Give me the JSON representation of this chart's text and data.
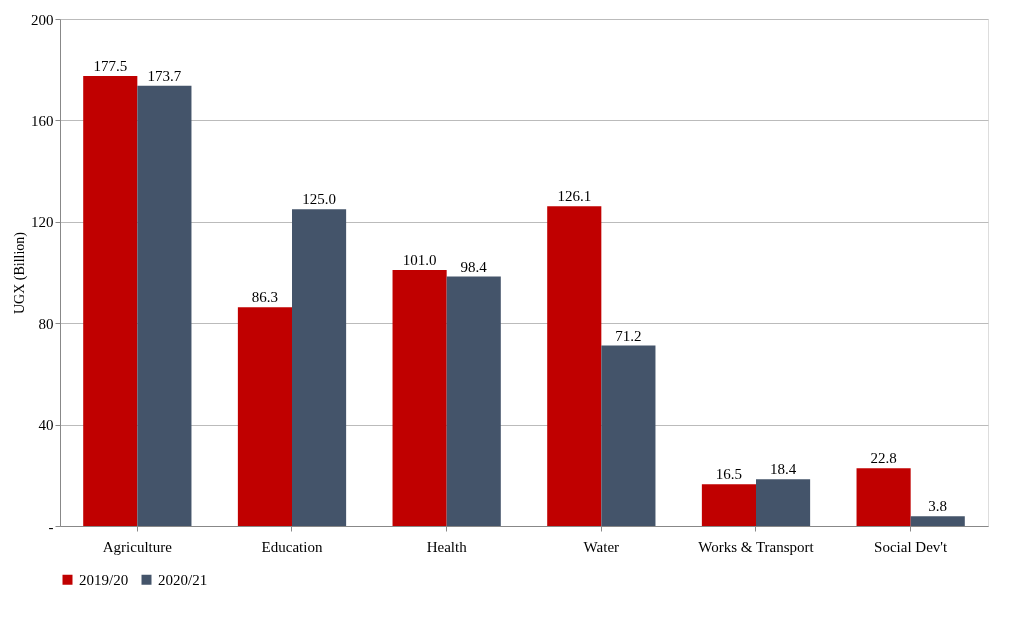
{
  "chart_data": {
    "type": "bar",
    "ylabel": "UGX (Billion)",
    "categories": [
      "Agriculture",
      "Education",
      "Health",
      "Water",
      "Works & Transport",
      "Social Dev't"
    ],
    "series": [
      {
        "name": "2019/20",
        "color": "#c00000",
        "values": [
          177.5,
          86.3,
          101.0,
          126.1,
          16.5,
          22.8
        ],
        "value_labels": [
          "177.5",
          "86.3",
          "101.0",
          "126.1",
          "16.5",
          "22.8"
        ]
      },
      {
        "name": "2020/21",
        "color": "#44546a",
        "values": [
          173.7,
          125.0,
          98.4,
          71.2,
          18.4,
          3.8
        ],
        "value_labels": [
          "173.7",
          "125.0",
          "98.4",
          "71.2",
          "18.4",
          "3.8"
        ]
      }
    ],
    "ylim": [
      0,
      200
    ],
    "yticks": [
      {
        "value": 0,
        "label": "-"
      },
      40,
      80,
      120,
      160,
      200
    ],
    "grid": "y",
    "legend": "bottom"
  }
}
